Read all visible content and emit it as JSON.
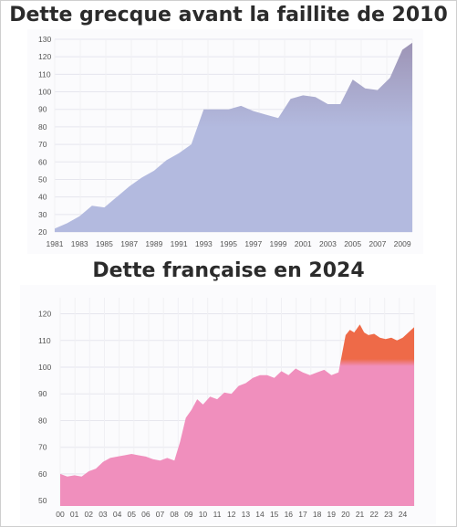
{
  "chart_data": [
    {
      "type": "area",
      "title": "Dette grecque avant la faillite de 2010",
      "xlabel": "",
      "ylabel": "",
      "x_tick_labels": [
        "1981",
        "1983",
        "1985",
        "1987",
        "1989",
        "1991",
        "1993",
        "1995",
        "1997",
        "1999",
        "2001",
        "2003",
        "2005",
        "2007",
        "2009"
      ],
      "y_ticks": [
        20,
        30,
        40,
        50,
        60,
        70,
        80,
        90,
        100,
        110,
        120,
        130
      ],
      "xlim": [
        1981,
        2009.8
      ],
      "ylim": [
        20,
        130
      ],
      "grid": true,
      "color": "#b3badf",
      "color_top": "#9d94b5",
      "x": [
        1981,
        1982,
        1983,
        1984,
        1985,
        1986,
        1987,
        1988,
        1989,
        1990,
        1991,
        1992,
        1993,
        1994,
        1995,
        1996,
        1997,
        1998,
        1999,
        2000,
        2001,
        2002,
        2003,
        2004,
        2005,
        2006,
        2007,
        2008,
        2009,
        2009.8
      ],
      "values": [
        22,
        25,
        29,
        35,
        34,
        40,
        46,
        51,
        55,
        61,
        65,
        70,
        90,
        90,
        90,
        92,
        89,
        87,
        85,
        96,
        98,
        97,
        93,
        93,
        107,
        102,
        101,
        108,
        124,
        128
      ]
    },
    {
      "type": "area",
      "title": "Dette française en 2024",
      "xlabel": "",
      "ylabel": "",
      "x_tick_labels": [
        "00",
        "01",
        "02",
        "03",
        "04",
        "05",
        "06",
        "07",
        "08",
        "09",
        "10",
        "11",
        "12",
        "13",
        "14",
        "15",
        "16",
        "17",
        "18",
        "19",
        "20",
        "21",
        "22",
        "23",
        "24"
      ],
      "y_ticks": [
        50,
        60,
        70,
        80,
        90,
        100,
        110,
        120
      ],
      "xlim": [
        0,
        24.8
      ],
      "ylim": [
        48,
        126
      ],
      "grid": true,
      "color": "#f08fbd",
      "color_top": "#ee6a48",
      "x": [
        0,
        0.5,
        1,
        1.5,
        2,
        2.5,
        3,
        3.5,
        4,
        4.5,
        5,
        5.5,
        6,
        6.5,
        7,
        7.5,
        8,
        8.4,
        8.8,
        9.2,
        9.6,
        10,
        10.5,
        11,
        11.5,
        12,
        12.5,
        13,
        13.5,
        14,
        14.5,
        15,
        15.5,
        16,
        16.5,
        17,
        17.5,
        18,
        18.5,
        19,
        19.5,
        20,
        20.3,
        20.6,
        21,
        21.3,
        21.6,
        22,
        22.4,
        22.8,
        23.2,
        23.6,
        24,
        24.4,
        24.8
      ],
      "values": [
        60,
        59,
        59.5,
        59,
        61,
        62,
        64.5,
        66,
        66.5,
        67,
        67.5,
        67,
        66.5,
        65.5,
        65,
        66,
        65,
        72,
        81,
        84,
        88,
        86,
        89,
        88,
        90.5,
        90,
        93,
        94,
        96,
        97,
        97,
        96,
        98.5,
        97,
        99.5,
        98,
        97,
        98,
        99,
        97,
        98,
        112,
        114,
        113,
        116,
        113,
        112,
        112.5,
        111,
        110.5,
        111,
        110,
        111,
        113,
        115
      ]
    }
  ]
}
